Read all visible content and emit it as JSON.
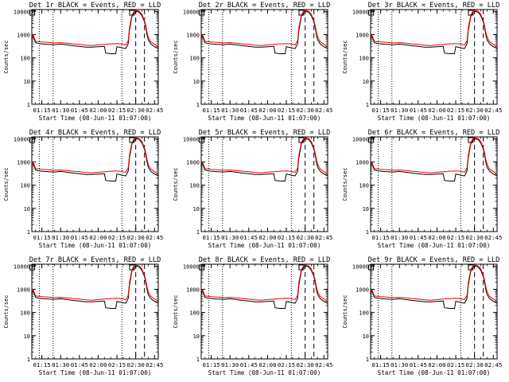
{
  "chart_data": {
    "type": "line",
    "x_time_ticks": [
      "01:15",
      "01:30",
      "01:45",
      "02:00",
      "02:15",
      "02:30",
      "02:45"
    ],
    "x_range_minutes": [
      67,
      168
    ],
    "y_scale": "log",
    "ylim": [
      1,
      12000
    ],
    "y_tick_labels": [
      "1",
      "10",
      "100",
      "1000",
      "10000"
    ],
    "xlabel": "Start Time (08-Jun-11 01:07:00)",
    "ylabel": "Counts/sec",
    "series_colors": {
      "events": "#000000",
      "lld": "#ff0000"
    },
    "dotted_lines_minutes": [
      73,
      84,
      139
    ],
    "dashed_lines_minutes": [
      150,
      157
    ],
    "panels": [
      {
        "title": "Det 1r BLACK = Events, RED = LLD"
      },
      {
        "title": "Det 2r BLACK = Events, RED = LLD"
      },
      {
        "title": "Det 3r BLACK = Events, RED = LLD"
      },
      {
        "title": "Det 4r BLACK = Events, RED = LLD"
      },
      {
        "title": "Det 5r BLACK = Events, RED = LLD"
      },
      {
        "title": "Det 6r BLACK = Events, RED = LLD"
      },
      {
        "title": "Det 7r BLACK = Events, RED = LLD"
      },
      {
        "title": "Det 8r BLACK = Events, RED = LLD"
      },
      {
        "title": "Det 9r BLACK = Events, RED = LLD"
      }
    ],
    "events_series": {
      "x": [
        67,
        68,
        70,
        72,
        75,
        80,
        85,
        90,
        95,
        100,
        105,
        110,
        115,
        120,
        125,
        126,
        130,
        134,
        135,
        138,
        140,
        142,
        144,
        145,
        147,
        149,
        151,
        153,
        155,
        157,
        158,
        159,
        160,
        162,
        165,
        168
      ],
      "y": [
        700,
        900,
        450,
        420,
        400,
        380,
        370,
        390,
        360,
        330,
        310,
        290,
        290,
        300,
        310,
        160,
        150,
        150,
        300,
        280,
        260,
        250,
        400,
        1500,
        6000,
        9500,
        10000,
        9000,
        6500,
        3500,
        2000,
        1000,
        600,
        400,
        300,
        250
      ]
    },
    "lld_series": {
      "x": [
        67,
        68,
        70,
        72,
        75,
        80,
        85,
        90,
        95,
        100,
        105,
        110,
        115,
        120,
        125,
        130,
        135,
        138,
        140,
        142,
        144,
        145,
        147,
        149,
        151,
        153,
        155,
        157,
        158,
        159,
        160,
        162,
        165,
        168
      ],
      "y": [
        800,
        1000,
        520,
        500,
        480,
        460,
        440,
        450,
        430,
        400,
        380,
        350,
        340,
        360,
        380,
        400,
        410,
        400,
        380,
        360,
        550,
        2000,
        7000,
        10500,
        11000,
        10000,
        7500,
        4000,
        2500,
        1300,
        800,
        500,
        380,
        300
      ]
    }
  }
}
